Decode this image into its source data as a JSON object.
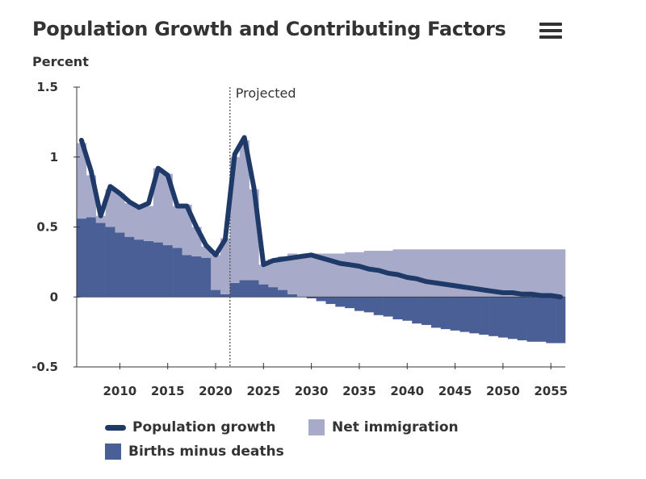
{
  "header": {
    "title": "Population Growth and Contributing Factors",
    "unit_label": "Percent",
    "menu_icon": "hamburger-menu-icon"
  },
  "colors": {
    "growth_line": "#1f3a68",
    "births_minus_deaths": "#4a5f95",
    "net_immigration": "#a7aac8",
    "axis": "#333333",
    "projection_line": "#555555"
  },
  "chart_data": {
    "type": "bar",
    "title": "Population Growth and Contributing Factors",
    "ylabel": "Percent",
    "xlabel": "",
    "ylim": [
      -0.5,
      1.5
    ],
    "yticks": [
      -0.5,
      0,
      0.5,
      1,
      1.5
    ],
    "ytick_labels": [
      "-0.5",
      "0",
      "0.5",
      "1",
      "1.5"
    ],
    "xlim": [
      2005.5,
      2056.5
    ],
    "xticks": [
      2010,
      2015,
      2020,
      2025,
      2030,
      2035,
      2040,
      2045,
      2050,
      2055
    ],
    "xtick_labels": [
      "2010",
      "2015",
      "2020",
      "2025",
      "2030",
      "2035",
      "2040",
      "2045",
      "2050",
      "2055"
    ],
    "projection_start": 2021.5,
    "projection_label": "Projected",
    "stacked": true,
    "grid": false,
    "legend_position": "bottom",
    "x": [
      2006,
      2007,
      2008,
      2009,
      2010,
      2011,
      2012,
      2013,
      2014,
      2015,
      2016,
      2017,
      2018,
      2019,
      2020,
      2021,
      2022,
      2023,
      2024,
      2025,
      2026,
      2027,
      2028,
      2029,
      2030,
      2031,
      2032,
      2033,
      2034,
      2035,
      2036,
      2037,
      2038,
      2039,
      2040,
      2041,
      2042,
      2043,
      2044,
      2045,
      2046,
      2047,
      2048,
      2049,
      2050,
      2051,
      2052,
      2053,
      2054,
      2055,
      2056
    ],
    "series": [
      {
        "name": "Births minus deaths",
        "kind": "bar",
        "values": [
          0.56,
          0.57,
          0.53,
          0.5,
          0.46,
          0.43,
          0.41,
          0.4,
          0.39,
          0.37,
          0.35,
          0.3,
          0.29,
          0.28,
          0.05,
          0.02,
          0.1,
          0.12,
          0.12,
          0.09,
          0.07,
          0.05,
          0.02,
          0.0,
          -0.01,
          -0.03,
          -0.05,
          -0.07,
          -0.08,
          -0.1,
          -0.11,
          -0.13,
          -0.14,
          -0.16,
          -0.17,
          -0.19,
          -0.2,
          -0.22,
          -0.23,
          -0.24,
          -0.25,
          -0.26,
          -0.27,
          -0.28,
          -0.29,
          -0.3,
          -0.31,
          -0.32,
          -0.32,
          -0.33,
          -0.33
        ]
      },
      {
        "name": "Net immigration",
        "kind": "bar",
        "values": [
          0.54,
          0.3,
          0.05,
          0.27,
          0.28,
          0.24,
          0.23,
          0.25,
          0.53,
          0.51,
          0.3,
          0.36,
          0.21,
          0.08,
          0.25,
          0.4,
          0.9,
          1.0,
          0.65,
          0.14,
          0.2,
          0.24,
          0.29,
          0.3,
          0.31,
          0.31,
          0.31,
          0.31,
          0.32,
          0.32,
          0.33,
          0.33,
          0.33,
          0.34,
          0.34,
          0.34,
          0.34,
          0.34,
          0.34,
          0.34,
          0.34,
          0.34,
          0.34,
          0.34,
          0.34,
          0.34,
          0.34,
          0.34,
          0.34,
          0.34,
          0.34
        ]
      },
      {
        "name": "Population growth",
        "kind": "line",
        "values": [
          1.12,
          0.9,
          0.58,
          0.79,
          0.74,
          0.68,
          0.64,
          0.67,
          0.92,
          0.87,
          0.65,
          0.65,
          0.5,
          0.37,
          0.3,
          0.41,
          1.02,
          1.14,
          0.78,
          0.23,
          0.26,
          0.27,
          0.28,
          0.29,
          0.3,
          0.28,
          0.26,
          0.24,
          0.23,
          0.22,
          0.2,
          0.19,
          0.17,
          0.16,
          0.14,
          0.13,
          0.11,
          0.1,
          0.09,
          0.08,
          0.07,
          0.06,
          0.05,
          0.04,
          0.03,
          0.03,
          0.02,
          0.02,
          0.01,
          0.01,
          0.0
        ]
      }
    ]
  },
  "legend": {
    "growth_label": "Population growth",
    "immigration_label": "Net immigration",
    "births_label": "Births minus deaths"
  }
}
